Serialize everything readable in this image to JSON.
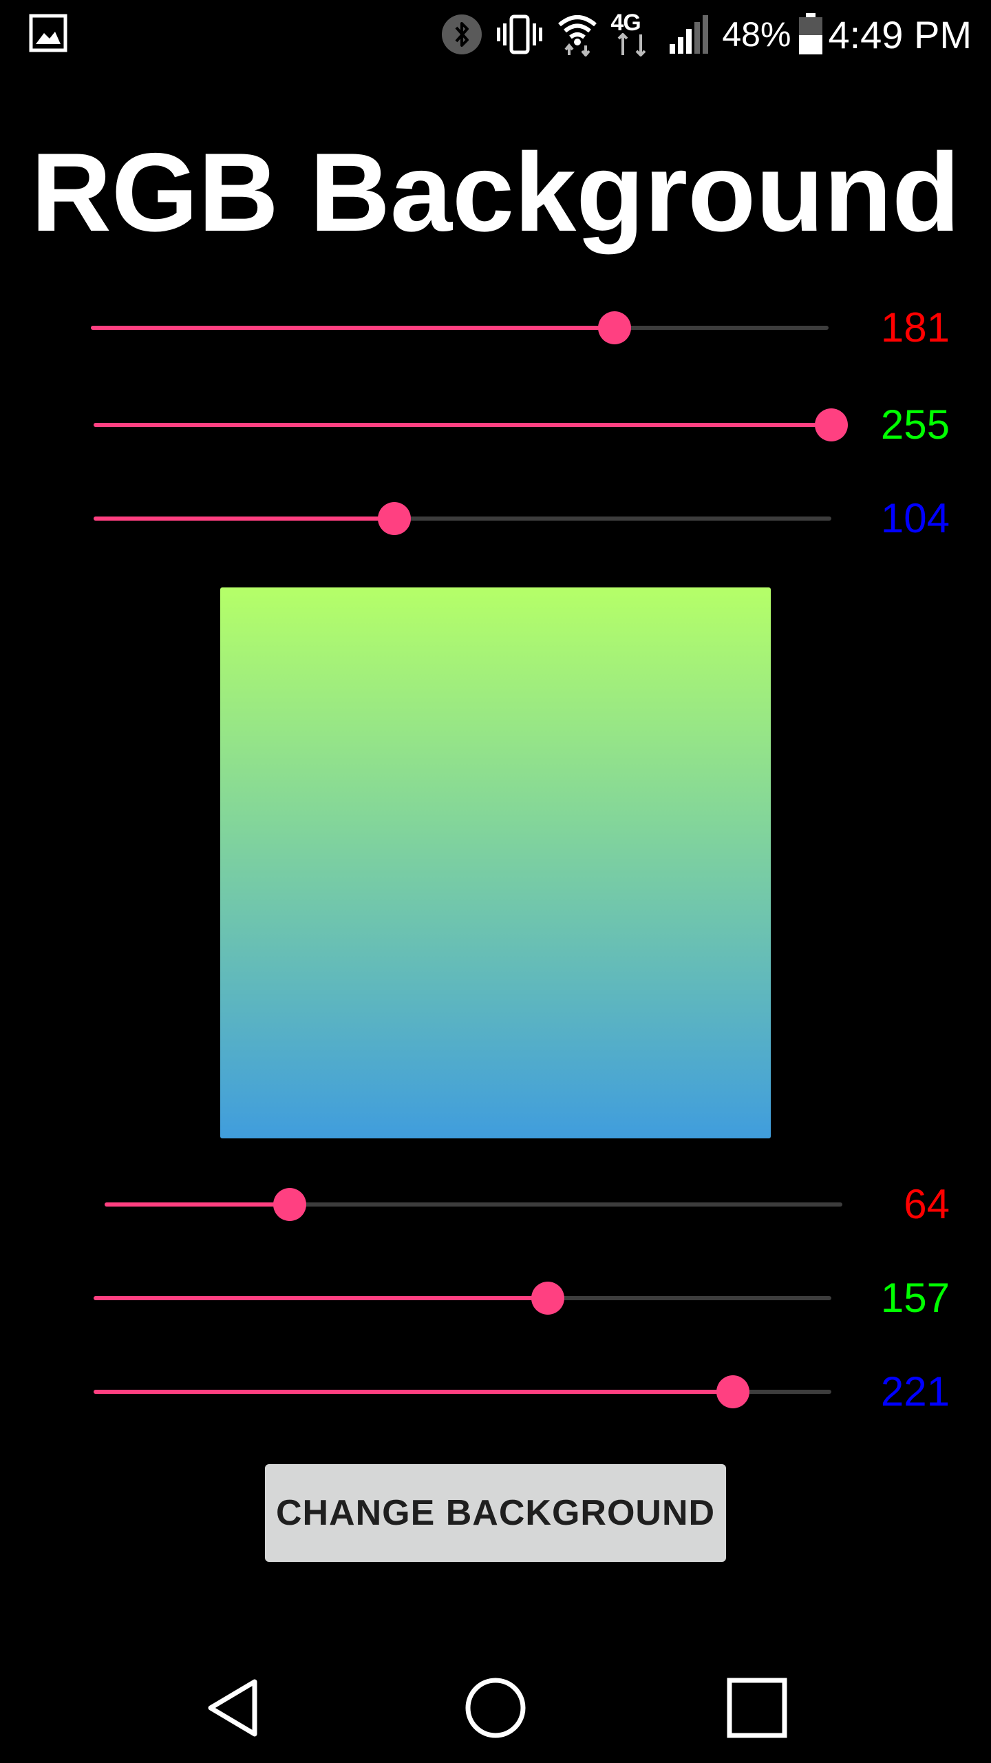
{
  "status_bar": {
    "battery_percent": "48%",
    "time": "4:49 PM",
    "icons": [
      "gallery-icon",
      "bluetooth-icon",
      "vibrate-icon",
      "wifi-icon",
      "lte-icon",
      "signal-icon",
      "battery-icon"
    ],
    "lte_label": "4G"
  },
  "title": "RGB Background",
  "colors": {
    "accent": "#ff4081",
    "track": "#3d3d3d",
    "red_label": "#ff0000",
    "green_label": "#00ff00",
    "blue_label": "#0000ff"
  },
  "top_color": {
    "red": {
      "value": 181,
      "label": "181",
      "max": 255
    },
    "green": {
      "value": 255,
      "label": "255",
      "max": 255
    },
    "blue": {
      "value": 104,
      "label": "104",
      "max": 255
    }
  },
  "bottom_color": {
    "red": {
      "value": 64,
      "label": "64",
      "max": 255
    },
    "green": {
      "value": 157,
      "label": "157",
      "max": 255
    },
    "blue": {
      "value": 221,
      "label": "221",
      "max": 255
    }
  },
  "button": {
    "label": "CHANGE BACKGROUND"
  },
  "nav": {
    "icons": [
      "back-icon",
      "home-icon",
      "recents-icon"
    ]
  }
}
